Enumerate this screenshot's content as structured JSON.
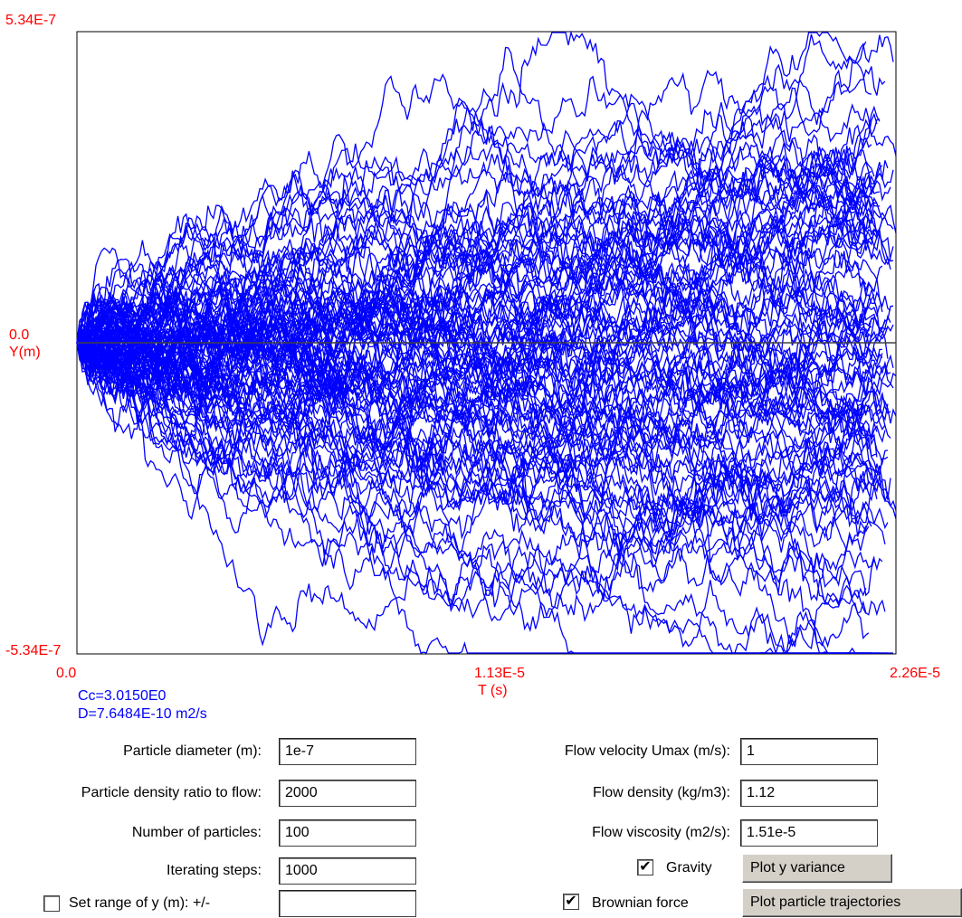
{
  "chart_data": {
    "type": "line",
    "y_top_label": "5.34E-7",
    "y_mid_label": "0.0",
    "y_axis_label": "Y(m)",
    "y_bottom_label": "-5.34E-7",
    "x_left_label": "0.0",
    "x_mid_label": "1.13E-5",
    "x_right_label": "2.26E-5",
    "x_axis_label": "T (s)",
    "xlim": [
      0,
      2.26e-05
    ],
    "ylim": [
      -5.34e-07,
      5.34e-07
    ],
    "series_count": 100,
    "series_color": "#0000ff"
  },
  "info": {
    "cc": "Cc=3.0150E0",
    "d": "D=7.6484E-10 m2/s"
  },
  "form": {
    "particle_diameter": {
      "label": "Particle diameter (m):",
      "value": "1e-7"
    },
    "density_ratio": {
      "label": "Particle density ratio to flow:",
      "value": "2000"
    },
    "num_particles": {
      "label": "Number of particles:",
      "value": "100"
    },
    "iter_steps": {
      "label": "Iterating steps:",
      "value": "1000"
    },
    "set_range": {
      "label": "Set range of y (m): +/-",
      "value": "",
      "checked": false
    },
    "flow_velocity": {
      "label": "Flow velocity Umax (m/s):",
      "value": "1"
    },
    "flow_density": {
      "label": "Flow density (kg/m3):",
      "value": "1.12"
    },
    "flow_viscosity": {
      "label": "Flow viscosity (m2/s):",
      "value": "1.51e-5"
    },
    "gravity": {
      "label": "Gravity",
      "checked": true
    },
    "brownian": {
      "label": "Brownian force",
      "checked": true
    }
  },
  "buttons": {
    "plot_variance": "Plot y variance",
    "plot_trajectories": "Plot particle trajectories"
  }
}
